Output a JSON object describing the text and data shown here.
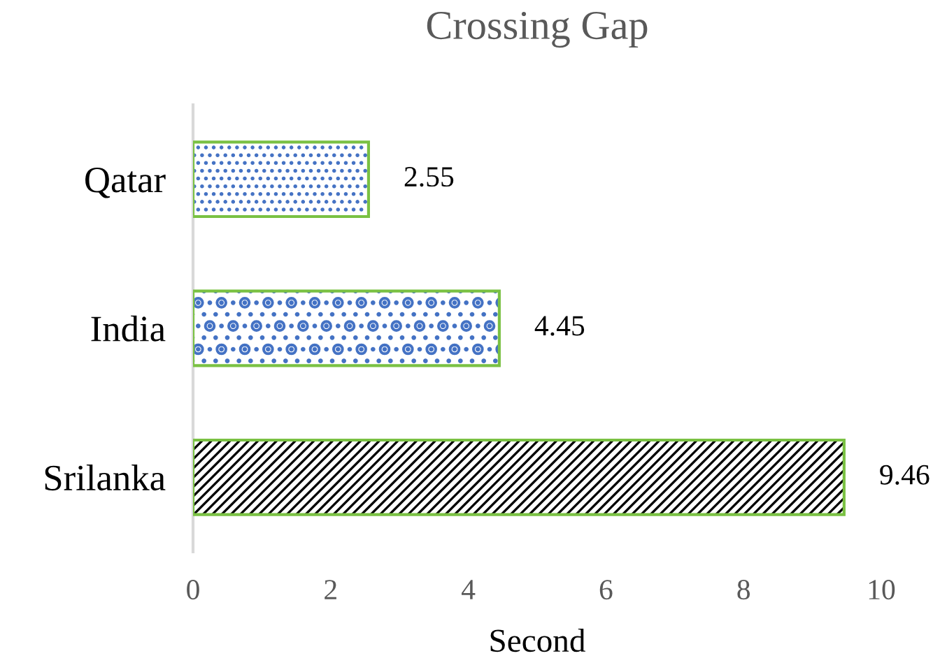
{
  "chart_data": {
    "type": "bar",
    "title": "Crossing Gap",
    "xlabel": "Second",
    "orientation": "horizontal",
    "categories": [
      "Qatar",
      "India",
      "Srilanka"
    ],
    "values": [
      2.55,
      4.45,
      9.46
    ],
    "colors": [
      "#4472c4",
      "#4472c4",
      "#000000"
    ],
    "xlim": [
      0,
      10
    ],
    "xticks": [
      0,
      2,
      4,
      6,
      8,
      10
    ],
    "grid": false,
    "data_labels": true
  }
}
